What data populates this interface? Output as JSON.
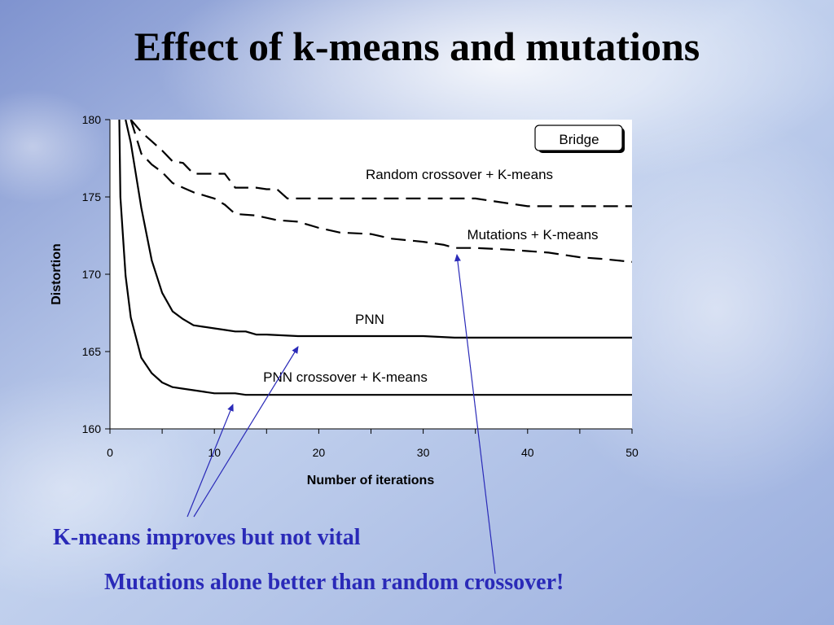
{
  "slide": {
    "title": "Effect of k-means and mutations",
    "notes": [
      "K-means improves but not vital",
      "Mutations alone better than random crossover!"
    ],
    "note_color": "#2a2ab8",
    "arrow_color": "#2a2ab8"
  },
  "chart_data": {
    "type": "line",
    "legend": "Bridge",
    "legend_placement": "top-right",
    "xlabel": "Number of iterations",
    "ylabel": "Distortion",
    "xlim": [
      0,
      50
    ],
    "ylim": [
      160,
      180
    ],
    "xticks": [
      0,
      10,
      20,
      30,
      40,
      50
    ],
    "yticks": [
      160,
      165,
      170,
      175,
      180
    ],
    "grid": false,
    "series": [
      {
        "name": "Random crossover + K-means",
        "style": "dashed",
        "x": [
          2,
          3,
          4,
          5,
          6,
          7,
          8,
          9,
          10,
          11,
          12,
          13,
          14,
          15,
          16,
          17,
          18,
          20,
          25,
          30,
          35,
          40,
          45,
          50
        ],
        "y": [
          180.0,
          179.2,
          178.6,
          178.0,
          177.3,
          177.2,
          176.5,
          176.5,
          176.5,
          176.5,
          175.6,
          175.6,
          175.6,
          175.5,
          175.5,
          174.9,
          174.9,
          174.9,
          174.9,
          174.9,
          174.9,
          174.4,
          174.4,
          174.4
        ]
      },
      {
        "name": "Mutations + K-means",
        "style": "dashed",
        "x": [
          2,
          3,
          4,
          5,
          6,
          7,
          8,
          9,
          10,
          11,
          12,
          14,
          16,
          18,
          20,
          22,
          25,
          27,
          30,
          32,
          33,
          35,
          38,
          40,
          42,
          45,
          47,
          50
        ],
        "y": [
          180.0,
          177.8,
          177.1,
          176.6,
          175.9,
          175.6,
          175.3,
          175.1,
          174.9,
          174.5,
          173.9,
          173.8,
          173.5,
          173.4,
          173.0,
          172.7,
          172.6,
          172.3,
          172.1,
          171.9,
          171.7,
          171.7,
          171.6,
          171.5,
          171.4,
          171.1,
          171.0,
          170.8
        ]
      },
      {
        "name": "PNN",
        "style": "solid",
        "x": [
          1.5,
          2,
          3,
          4,
          5,
          6,
          7,
          8,
          9,
          10,
          11,
          12,
          13,
          14,
          15,
          18,
          20,
          25,
          30,
          33,
          40,
          50
        ],
        "y": [
          180.0,
          178.5,
          174.3,
          170.9,
          168.8,
          167.6,
          167.1,
          166.7,
          166.6,
          166.5,
          166.4,
          166.3,
          166.3,
          166.1,
          166.1,
          166.0,
          166.0,
          166.0,
          166.0,
          165.9,
          165.9,
          165.9
        ]
      },
      {
        "name": "PNN crossover + K-means",
        "style": "solid",
        "x": [
          0.9,
          1.0,
          1.5,
          2,
          3,
          4,
          5,
          6,
          7,
          8,
          9,
          10,
          11,
          12,
          13,
          15,
          20,
          30,
          40,
          50
        ],
        "y": [
          180.0,
          175.0,
          169.9,
          167.2,
          164.6,
          163.6,
          163.0,
          162.7,
          162.6,
          162.5,
          162.4,
          162.3,
          162.3,
          162.3,
          162.2,
          162.2,
          162.2,
          162.2,
          162.2,
          162.2
        ]
      }
    ]
  }
}
